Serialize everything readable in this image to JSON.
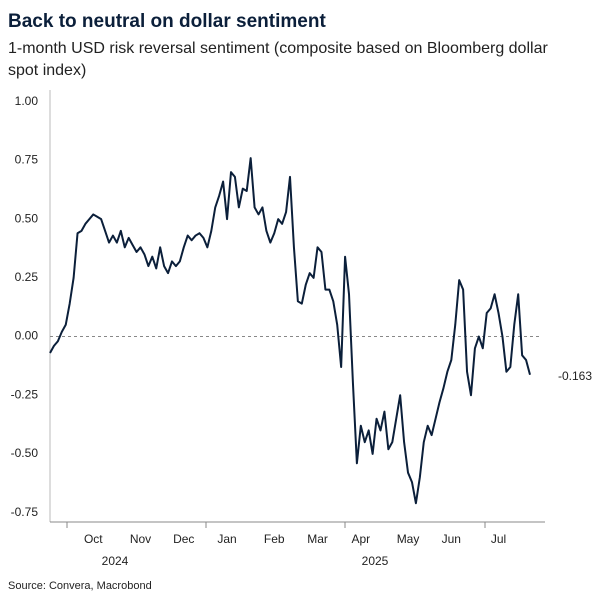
{
  "chart_data": {
    "type": "line",
    "title": "Back to neutral on dollar sentiment",
    "subtitle_lines": [
      "1-month USD risk reversal sentiment (composite based on Bloomberg dollar",
      "spot index)"
    ],
    "source": "Source: Convera, Macrobond",
    "years": [
      "2024",
      "2025"
    ],
    "categories": [
      null,
      null,
      null,
      null,
      null,
      null,
      null,
      null,
      null,
      null,
      null,
      "Oct",
      null,
      null,
      null,
      null,
      null,
      null,
      null,
      null,
      null,
      null,
      null,
      "Nov",
      null,
      null,
      null,
      null,
      null,
      null,
      null,
      null,
      null,
      null,
      "Dec",
      null,
      null,
      null,
      null,
      null,
      null,
      null,
      null,
      null,
      null,
      "Jan",
      null,
      null,
      null,
      null,
      null,
      null,
      null,
      null,
      null,
      null,
      null,
      "Feb",
      null,
      null,
      null,
      null,
      null,
      null,
      null,
      null,
      null,
      null,
      "Mar",
      null,
      null,
      null,
      null,
      null,
      null,
      null,
      null,
      null,
      null,
      "Apr",
      null,
      null,
      null,
      null,
      null,
      null,
      null,
      null,
      null,
      null,
      null,
      "May",
      null,
      null,
      null,
      null,
      null,
      null,
      null,
      null,
      null,
      null,
      "Jun",
      null,
      null,
      null,
      null,
      null,
      null,
      null,
      null,
      null,
      null,
      null,
      "Jul",
      null,
      null,
      null,
      null,
      null,
      null,
      null,
      null
    ],
    "series": [
      {
        "color": "#0b1f3a",
        "values": [
          -0.07,
          -0.04,
          -0.02,
          0.02,
          0.05,
          0.14,
          0.25,
          0.44,
          0.45,
          0.48,
          0.5,
          0.52,
          0.51,
          0.5,
          0.45,
          0.4,
          0.43,
          0.4,
          0.45,
          0.38,
          0.42,
          0.39,
          0.36,
          0.38,
          0.35,
          0.3,
          0.34,
          0.29,
          0.38,
          0.3,
          0.27,
          0.32,
          0.3,
          0.32,
          0.38,
          0.43,
          0.41,
          0.43,
          0.44,
          0.42,
          0.38,
          0.45,
          0.55,
          0.6,
          0.66,
          0.5,
          0.7,
          0.68,
          0.55,
          0.63,
          0.62,
          0.76,
          0.55,
          0.52,
          0.55,
          0.45,
          0.4,
          0.44,
          0.5,
          0.48,
          0.53,
          0.68,
          0.38,
          0.15,
          0.14,
          0.22,
          0.27,
          0.25,
          0.38,
          0.36,
          0.2,
          0.2,
          0.15,
          0.05,
          -0.13,
          0.34,
          0.18,
          -0.2,
          -0.54,
          -0.38,
          -0.45,
          -0.4,
          -0.5,
          -0.35,
          -0.4,
          -0.32,
          -0.48,
          -0.45,
          -0.35,
          -0.25,
          -0.45,
          -0.58,
          -0.62,
          -0.71,
          -0.6,
          -0.45,
          -0.38,
          -0.42,
          -0.35,
          -0.28,
          -0.22,
          -0.15,
          -0.1,
          0.05,
          0.24,
          0.2,
          -0.15,
          -0.25,
          -0.05,
          0.0,
          -0.05,
          0.1,
          0.12,
          0.18,
          0.1,
          0.0,
          -0.15,
          -0.13,
          0.05,
          0.18,
          -0.08,
          -0.1,
          -0.163
        ]
      }
    ],
    "ylim": [
      -0.79,
      1.05
    ],
    "yticks": [
      {
        "value": 1,
        "label": "1.00"
      },
      {
        "value": 0.75,
        "label": "0.75"
      },
      {
        "value": 0.5,
        "label": "0.50"
      },
      {
        "value": 0.25,
        "label": "0.25"
      },
      {
        "value": 0,
        "label": "0.00"
      },
      {
        "value": -0.25,
        "label": "-0.25"
      },
      {
        "value": -0.5,
        "label": "-0.50"
      },
      {
        "value": -0.75,
        "label": "-0.75"
      }
    ]
  }
}
